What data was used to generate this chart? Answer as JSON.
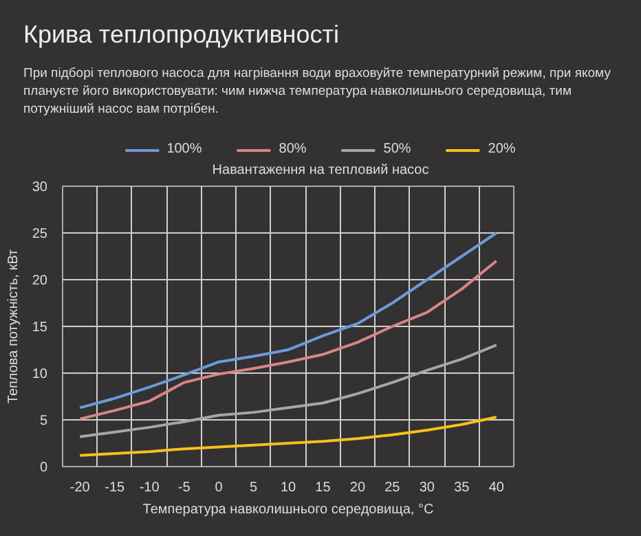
{
  "chart_data": {
    "type": "line",
    "title": "Крива теплопродуктивності",
    "subtitle": "При підборі теплового насоса для нагрівання води враховуйте температурний режим, при якому плануєте його використовувати: чим нижча температура навколишнього середовища, тим потужніший насос вам потрібен.",
    "xlabel": "Температура навколишнього середовища, °C",
    "ylabel": "Теплова потужність, кВт",
    "legend_title": "Навантаження на тепловий насос",
    "legend": "top",
    "grid": true,
    "marker": "none",
    "line_style": "solid",
    "categories": [
      "-20",
      "-15",
      "-10",
      "-5",
      "0",
      "5",
      "10",
      "15",
      "20",
      "25",
      "30",
      "35",
      "40"
    ],
    "ylim": [
      0,
      30
    ],
    "yticks": [
      0,
      5,
      10,
      15,
      20,
      25,
      30
    ],
    "series": [
      {
        "name": "100%",
        "color": "#6a9bd8",
        "values": [
          6.3,
          7.3,
          8.5,
          9.8,
          11.2,
          11.8,
          12.5,
          14,
          15.3,
          17.5,
          20,
          22.5,
          25
        ]
      },
      {
        "name": "80%",
        "color": "#d98585",
        "values": [
          5.1,
          6.0,
          7.0,
          9.0,
          9.9,
          10.5,
          11.2,
          12.0,
          13.3,
          15,
          16.5,
          19,
          22
        ]
      },
      {
        "name": "50%",
        "color": "#a6a6a6",
        "values": [
          3.2,
          3.7,
          4.2,
          4.8,
          5.5,
          5.8,
          6.3,
          6.8,
          7.8,
          9.0,
          10.3,
          11.5,
          13
        ]
      },
      {
        "name": "20%",
        "color": "#f3c31a",
        "values": [
          1.2,
          1.4,
          1.6,
          1.9,
          2.1,
          2.3,
          2.5,
          2.7,
          3.0,
          3.4,
          3.9,
          4.5,
          5.3
        ]
      }
    ]
  }
}
